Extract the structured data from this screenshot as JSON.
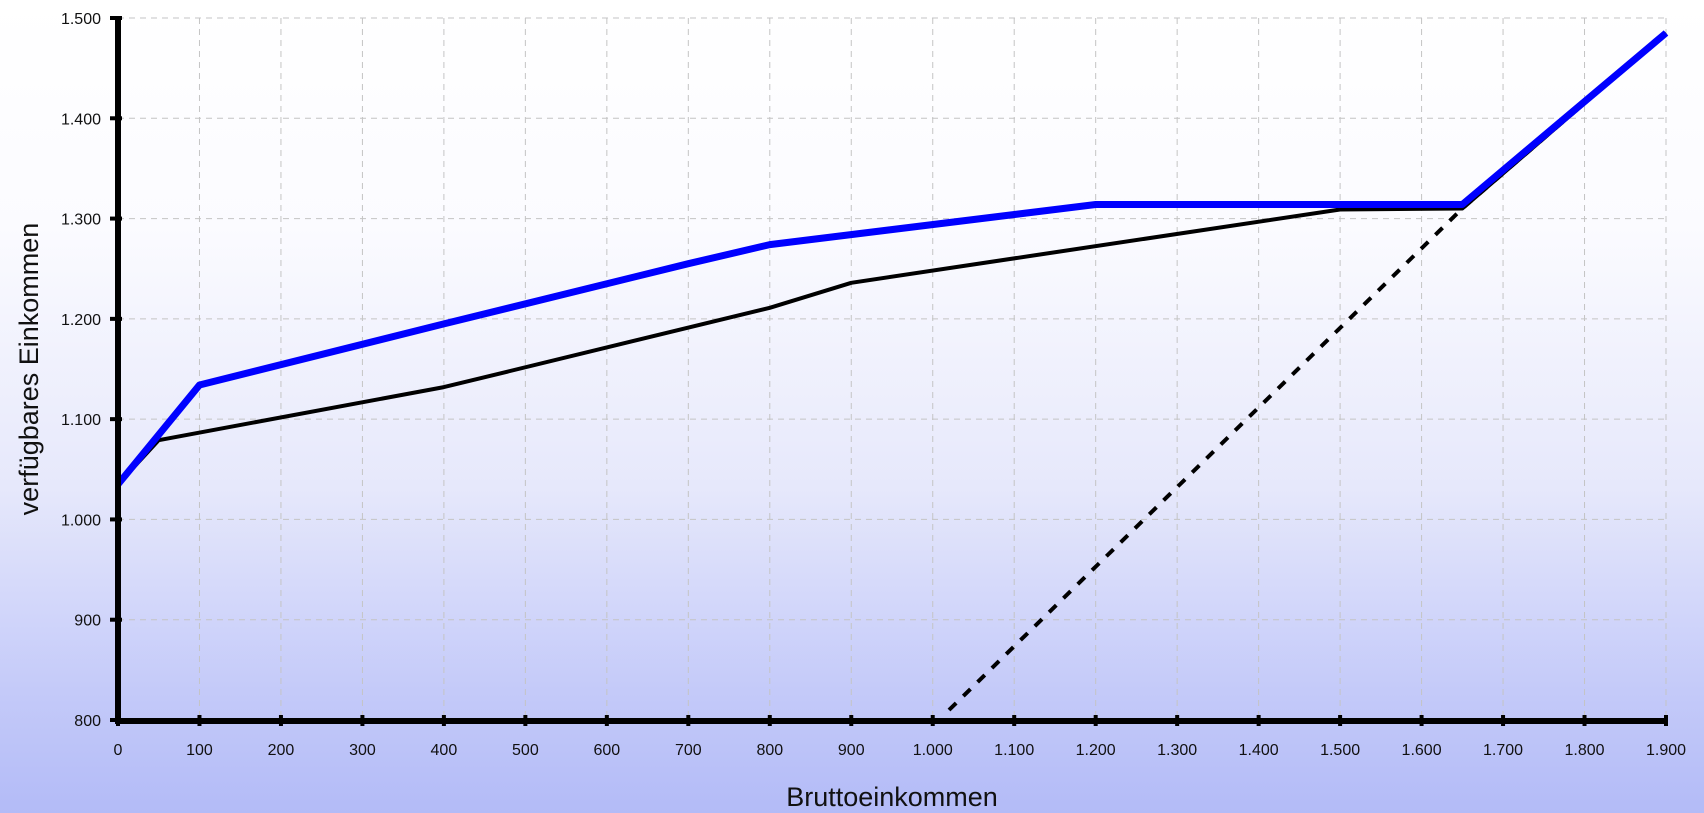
{
  "chart_data": {
    "type": "line",
    "title": "",
    "xlabel": "Bruttoeinkommen",
    "ylabel": "verfügbares Einkommen",
    "xlim": [
      0,
      1900
    ],
    "ylim": [
      800,
      1500
    ],
    "x_ticks": [
      0,
      100,
      200,
      300,
      400,
      500,
      600,
      700,
      800,
      900,
      1000,
      1100,
      1200,
      1300,
      1400,
      1500,
      1600,
      1700,
      1800,
      1900
    ],
    "x_tick_labels": [
      "0",
      "100",
      "200",
      "300",
      "400",
      "500",
      "600",
      "700",
      "800",
      "900",
      "1.000",
      "1.100",
      "1.200",
      "1.300",
      "1.400",
      "1.500",
      "1.600",
      "1.700",
      "1.800",
      "1.900"
    ],
    "y_ticks": [
      800,
      900,
      1000,
      1100,
      1200,
      1300,
      1400,
      1500
    ],
    "y_tick_labels": [
      "800",
      "900",
      "1.000",
      "1.100",
      "1.200",
      "1.300",
      "1.400",
      "1.500"
    ],
    "grid": true,
    "legend": "none",
    "series": [
      {
        "color": "#0000ff",
        "style": "solid-thick",
        "x": [
          0,
          100,
          400,
          700,
          800,
          1200,
          1650,
          1900
        ],
        "y": [
          1035,
          1134,
          1195,
          1255,
          1274,
          1314,
          1314,
          1485
        ]
      },
      {
        "color": "#000000",
        "style": "solid",
        "x": [
          0,
          50,
          400,
          800,
          900,
          1500,
          1650,
          1900
        ],
        "y": [
          1035,
          1079,
          1132,
          1211,
          1236,
          1309,
          1310,
          1485
        ]
      },
      {
        "color": "#000000",
        "style": "dashed",
        "x": [
          1020,
          1650,
          1900
        ],
        "y": [
          810,
          1310,
          1485
        ]
      }
    ]
  }
}
